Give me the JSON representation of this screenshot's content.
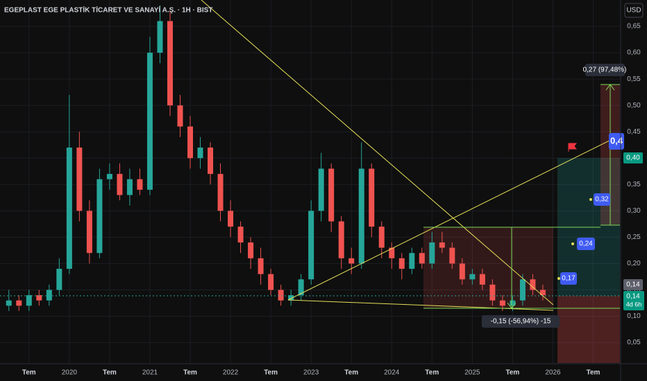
{
  "chart_data": {
    "type": "candlestick",
    "title": "EGEPLAST EGE PLASTİK TİCARET VE SANAYİ A.Ş. · 1H · BIST",
    "currency": "USD",
    "x": [
      2019.25,
      2019.375,
      2019.5,
      2019.625,
      2019.75,
      2019.875,
      2020.0,
      2020.125,
      2020.25,
      2020.375,
      2020.5,
      2020.625,
      2020.75,
      2020.875,
      2021.0,
      2021.125,
      2021.25,
      2021.375,
      2021.5,
      2021.625,
      2021.75,
      2021.875,
      2022.0,
      2022.125,
      2022.25,
      2022.375,
      2022.5,
      2022.625,
      2022.75,
      2022.875,
      2023.0,
      2023.125,
      2023.25,
      2023.375,
      2023.5,
      2023.625,
      2023.75,
      2023.875,
      2024.0,
      2024.125,
      2024.25,
      2024.375,
      2024.5,
      2024.625,
      2024.75,
      2024.875,
      2025.0,
      2025.125,
      2025.25,
      2025.375,
      2025.5,
      2025.625,
      2025.75,
      2025.875
    ],
    "open": [
      0.12,
      0.13,
      0.12,
      0.14,
      0.13,
      0.15,
      0.19,
      0.42,
      0.3,
      0.22,
      0.36,
      0.37,
      0.33,
      0.36,
      0.34,
      0.6,
      0.66,
      0.5,
      0.46,
      0.4,
      0.42,
      0.37,
      0.3,
      0.27,
      0.24,
      0.21,
      0.18,
      0.15,
      0.13,
      0.14,
      0.17,
      0.3,
      0.38,
      0.28,
      0.21,
      0.2,
      0.38,
      0.27,
      0.23,
      0.21,
      0.19,
      0.22,
      0.2,
      0.24,
      0.23,
      0.2,
      0.17,
      0.18,
      0.16,
      0.13,
      0.12,
      0.13,
      0.17,
      0.15
    ],
    "high": [
      0.15,
      0.14,
      0.15,
      0.15,
      0.16,
      0.21,
      0.52,
      0.45,
      0.32,
      0.38,
      0.39,
      0.39,
      0.38,
      0.38,
      0.63,
      0.69,
      0.68,
      0.52,
      0.48,
      0.44,
      0.43,
      0.39,
      0.32,
      0.28,
      0.25,
      0.23,
      0.19,
      0.16,
      0.15,
      0.18,
      0.32,
      0.41,
      0.39,
      0.29,
      0.23,
      0.43,
      0.39,
      0.28,
      0.24,
      0.22,
      0.23,
      0.23,
      0.26,
      0.26,
      0.24,
      0.21,
      0.19,
      0.19,
      0.17,
      0.14,
      0.14,
      0.18,
      0.18,
      0.16
    ],
    "low": [
      0.11,
      0.11,
      0.11,
      0.12,
      0.12,
      0.14,
      0.18,
      0.28,
      0.2,
      0.21,
      0.34,
      0.32,
      0.31,
      0.33,
      0.33,
      0.58,
      0.48,
      0.44,
      0.38,
      0.38,
      0.35,
      0.28,
      0.25,
      0.22,
      0.19,
      0.16,
      0.14,
      0.12,
      0.12,
      0.13,
      0.16,
      0.28,
      0.26,
      0.19,
      0.18,
      0.19,
      0.25,
      0.21,
      0.19,
      0.17,
      0.18,
      0.19,
      0.19,
      0.22,
      0.19,
      0.16,
      0.16,
      0.15,
      0.12,
      0.11,
      0.11,
      0.12,
      0.14,
      0.13
    ],
    "close": [
      0.13,
      0.12,
      0.14,
      0.13,
      0.15,
      0.19,
      0.42,
      0.3,
      0.22,
      0.36,
      0.37,
      0.33,
      0.36,
      0.34,
      0.6,
      0.66,
      0.5,
      0.46,
      0.4,
      0.42,
      0.37,
      0.3,
      0.27,
      0.24,
      0.21,
      0.18,
      0.15,
      0.13,
      0.14,
      0.17,
      0.3,
      0.38,
      0.28,
      0.21,
      0.2,
      0.38,
      0.27,
      0.23,
      0.21,
      0.19,
      0.22,
      0.2,
      0.24,
      0.23,
      0.2,
      0.17,
      0.18,
      0.16,
      0.13,
      0.12,
      0.13,
      0.17,
      0.15,
      0.14
    ],
    "up_color": "#26a69a",
    "down_color": "#ef5350",
    "xlim": [
      2019.14,
      2026.84
    ],
    "ylim": [
      0.01,
      0.7
    ],
    "xticks": [
      {
        "value": 2019.5,
        "label": "Tem"
      },
      {
        "value": 2020,
        "label": "2020"
      },
      {
        "value": 2020.5,
        "label": "Tem"
      },
      {
        "value": 2021,
        "label": "2021"
      },
      {
        "value": 2021.5,
        "label": "Tem"
      },
      {
        "value": 2022,
        "label": "2022"
      },
      {
        "value": 2022.5,
        "label": "Tem"
      },
      {
        "value": 2023,
        "label": "2023"
      },
      {
        "value": 2023.5,
        "label": "Tem"
      },
      {
        "value": 2024,
        "label": "2024"
      },
      {
        "value": 2024.5,
        "label": "Tem"
      },
      {
        "value": 2025,
        "label": "2025"
      },
      {
        "value": 2025.5,
        "label": "Tem"
      },
      {
        "value": 2026,
        "label": "2026"
      },
      {
        "value": 2026.5,
        "label": "Tem"
      }
    ],
    "yticks": [
      {
        "value": 0.05,
        "label": "0,05"
      },
      {
        "value": 0.1,
        "label": "0,10"
      },
      {
        "value": 0.15,
        "label": "0,15"
      },
      {
        "value": 0.2,
        "label": "0,20"
      },
      {
        "value": 0.25,
        "label": "0,25"
      },
      {
        "value": 0.3,
        "label": "0,30"
      },
      {
        "value": 0.35,
        "label": "0,35"
      },
      {
        "value": 0.4,
        "label": "0,40"
      },
      {
        "value": 0.45,
        "label": "0,45"
      },
      {
        "value": 0.5,
        "label": "0,50"
      },
      {
        "value": 0.55,
        "label": "0,55"
      },
      {
        "value": 0.6,
        "label": "0,60"
      },
      {
        "value": 0.65,
        "label": "0,65"
      }
    ],
    "annotations": {
      "measure_down": "-0,15 (-56,94%) -15",
      "measure_up": "0,27 (97,48%)",
      "tags": [
        "0,4",
        "0,32",
        "0,24",
        "0,17"
      ],
      "axis_tags": [
        "0,40",
        "0,14",
        "0,14",
        "4d 6h"
      ]
    }
  }
}
